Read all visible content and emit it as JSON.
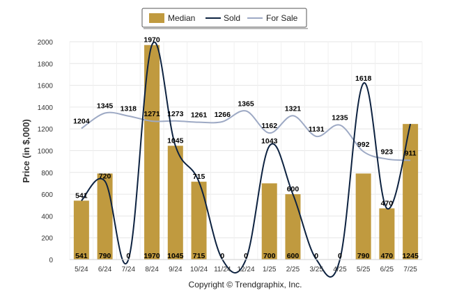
{
  "chart_data": {
    "type": "bar+line",
    "categories": [
      "5/24",
      "6/24",
      "7/24",
      "8/24",
      "9/24",
      "10/24",
      "11/24",
      "12/24",
      "1/25",
      "2/25",
      "3/25",
      "4/25",
      "5/25",
      "6/25",
      "7/25"
    ],
    "series": [
      {
        "name": "Median",
        "type": "bar",
        "values": [
          541,
          790,
          0,
          1970,
          1045,
          715,
          0,
          0,
          700,
          600,
          0,
          0,
          790,
          470,
          1245
        ]
      },
      {
        "name": "Sold",
        "type": "line",
        "values": [
          541,
          720,
          0,
          1970,
          1045,
          715,
          0,
          0,
          1043,
          600,
          0,
          0,
          1618,
          470,
          1245
        ]
      },
      {
        "name": "For Sale",
        "type": "line",
        "values": [
          1204,
          1345,
          1318,
          1271,
          1273,
          1261,
          1266,
          1365,
          1162,
          1321,
          1131,
          1235,
          992,
          923,
          911
        ]
      }
    ],
    "bar_labels": [
      "541",
      "790",
      "0",
      "1970",
      "1045",
      "715",
      "0",
      "0",
      "700",
      "600",
      "0",
      "0",
      "790",
      "470",
      "1245"
    ],
    "sold_labels": [
      "541",
      "720",
      "",
      "1970",
      "1045",
      "715",
      "",
      "",
      "1043",
      "600",
      "",
      "",
      "1618",
      "470",
      ""
    ],
    "forsale_labels": [
      "1204",
      "1345",
      "1318",
      "1271",
      "1273",
      "1261",
      "1266",
      "1365",
      "1162",
      "1321",
      "1131",
      "1235",
      "992",
      "923",
      "911"
    ],
    "title": "",
    "xlabel": "",
    "ylabel": "Price (in $,000)",
    "ylim": [
      0,
      2000
    ],
    "yticks": [
      0,
      200,
      400,
      600,
      800,
      1000,
      1200,
      1400,
      1600,
      1800,
      2000
    ],
    "grid": true,
    "legend": "top-center",
    "colors": {
      "Median": "#C09A3F",
      "Sold": "#0D2240",
      "For Sale": "#9DA9C4"
    }
  },
  "credit": "Copyright © Trendgraphix, Inc."
}
